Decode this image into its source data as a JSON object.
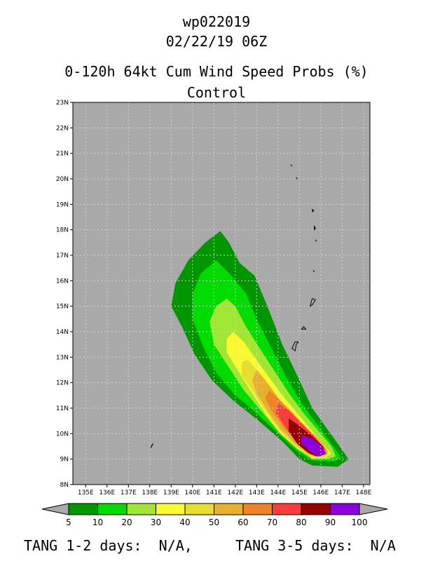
{
  "header": {
    "storm_id": "wp022019",
    "datetime": "02/22/19 06Z",
    "product": "0-120h 64kt Cum Wind Speed Probs (%)",
    "run": "Control"
  },
  "map": {
    "background_color": "#a9a9a9",
    "lat_labels": [
      "8N",
      "9N",
      "10N",
      "11N",
      "12N",
      "13N",
      "14N",
      "15N",
      "16N",
      "17N",
      "18N",
      "19N",
      "20N",
      "21N",
      "22N",
      "23N"
    ],
    "lon_labels": [
      "135E",
      "136E",
      "137E",
      "138E",
      "139E",
      "140E",
      "141E",
      "142E",
      "143E",
      "144E",
      "145E",
      "146E",
      "147E",
      "148E"
    ],
    "lat_range": [
      8,
      23
    ],
    "lon_range": [
      134.4,
      148.3
    ],
    "probability_regions": [
      {
        "min": 5,
        "color": "#009600",
        "outline": [
          [
            141.3,
            17.95
          ],
          [
            141.7,
            17.5
          ],
          [
            142.2,
            16.7
          ],
          [
            142.9,
            16.2
          ],
          [
            143.5,
            15.0
          ],
          [
            144.2,
            13.5
          ],
          [
            145.0,
            12.1
          ],
          [
            145.6,
            11.0
          ],
          [
            146.2,
            10.3
          ],
          [
            146.8,
            9.6
          ],
          [
            147.3,
            9.0
          ],
          [
            146.8,
            8.7
          ],
          [
            145.6,
            8.75
          ],
          [
            145.0,
            9.0
          ],
          [
            144.2,
            9.7
          ],
          [
            143.1,
            10.5
          ],
          [
            141.9,
            11.3
          ],
          [
            140.9,
            12.1
          ],
          [
            140.1,
            13.1
          ],
          [
            139.5,
            14.2
          ],
          [
            139.0,
            15.0
          ],
          [
            139.2,
            15.9
          ],
          [
            139.8,
            16.8
          ],
          [
            140.6,
            17.5
          ]
        ]
      },
      {
        "min": 10,
        "color": "#00dc00",
        "outline": [
          [
            141.1,
            16.8
          ],
          [
            141.7,
            16.3
          ],
          [
            142.5,
            15.5
          ],
          [
            143.0,
            14.5
          ],
          [
            143.6,
            13.5
          ],
          [
            144.4,
            12.2
          ],
          [
            145.1,
            11.2
          ],
          [
            145.8,
            10.4
          ],
          [
            146.5,
            9.6
          ],
          [
            146.95,
            9.05
          ],
          [
            146.6,
            8.9
          ],
          [
            145.6,
            8.95
          ],
          [
            144.9,
            9.3
          ],
          [
            144.0,
            10.0
          ],
          [
            143.0,
            10.8
          ],
          [
            142.0,
            11.5
          ],
          [
            141.1,
            12.4
          ],
          [
            140.5,
            13.4
          ],
          [
            140.0,
            14.5
          ],
          [
            140.0,
            15.5
          ],
          [
            140.4,
            16.3
          ]
        ]
      },
      {
        "min": 20,
        "color": "#a0e632",
        "outline": [
          [
            141.6,
            15.3
          ],
          [
            142.0,
            15.0
          ],
          [
            142.5,
            14.2
          ],
          [
            143.1,
            13.4
          ],
          [
            143.8,
            12.5
          ],
          [
            144.5,
            11.6
          ],
          [
            145.2,
            10.8
          ],
          [
            145.9,
            10.1
          ],
          [
            146.5,
            9.5
          ],
          [
            146.7,
            9.1
          ],
          [
            146.3,
            9.0
          ],
          [
            145.6,
            9.0
          ],
          [
            144.9,
            9.4
          ],
          [
            144.0,
            10.1
          ],
          [
            143.2,
            10.9
          ],
          [
            142.4,
            11.7
          ],
          [
            141.7,
            12.6
          ],
          [
            141.0,
            13.5
          ],
          [
            140.8,
            14.4
          ],
          [
            141.1,
            15.0
          ]
        ]
      },
      {
        "min": 30,
        "color": "#fafa32",
        "outline": [
          [
            141.9,
            14.0
          ],
          [
            142.4,
            13.6
          ],
          [
            142.9,
            13.0
          ],
          [
            143.5,
            12.3
          ],
          [
            144.2,
            11.5
          ],
          [
            144.9,
            10.8
          ],
          [
            145.6,
            10.1
          ],
          [
            146.2,
            9.5
          ],
          [
            146.5,
            9.2
          ],
          [
            146.2,
            9.05
          ],
          [
            145.6,
            9.05
          ],
          [
            144.9,
            9.4
          ],
          [
            144.1,
            10.0
          ],
          [
            143.4,
            10.8
          ],
          [
            142.7,
            11.7
          ],
          [
            142.1,
            12.5
          ],
          [
            141.6,
            13.2
          ],
          [
            141.6,
            13.7
          ]
        ]
      },
      {
        "min": 40,
        "color": "#e6dc32",
        "outline": [
          [
            142.6,
            12.9
          ],
          [
            143.1,
            12.4
          ],
          [
            143.7,
            11.7
          ],
          [
            144.4,
            11.0
          ],
          [
            145.1,
            10.4
          ],
          [
            145.8,
            9.9
          ],
          [
            146.3,
            9.4
          ],
          [
            146.4,
            9.15
          ],
          [
            146.0,
            9.05
          ],
          [
            145.5,
            9.1
          ],
          [
            144.8,
            9.5
          ],
          [
            144.1,
            10.1
          ],
          [
            143.4,
            10.9
          ],
          [
            142.8,
            11.7
          ],
          [
            142.3,
            12.3
          ],
          [
            142.3,
            12.8
          ]
        ]
      },
      {
        "min": 50,
        "color": "#e6af2d",
        "outline": [
          [
            143.0,
            12.5
          ],
          [
            143.5,
            12.0
          ],
          [
            144.1,
            11.3
          ],
          [
            144.8,
            10.7
          ],
          [
            145.5,
            10.1
          ],
          [
            146.1,
            9.6
          ],
          [
            146.35,
            9.25
          ],
          [
            146.0,
            9.1
          ],
          [
            145.5,
            9.15
          ],
          [
            144.8,
            9.6
          ],
          [
            144.1,
            10.2
          ],
          [
            143.5,
            10.9
          ],
          [
            143.0,
            11.6
          ],
          [
            142.8,
            12.1
          ]
        ]
      },
      {
        "min": 60,
        "color": "#f08228",
        "outline": [
          [
            143.6,
            11.7
          ],
          [
            144.1,
            11.3
          ],
          [
            144.7,
            10.8
          ],
          [
            145.3,
            10.2
          ],
          [
            145.9,
            9.7
          ],
          [
            146.3,
            9.3
          ],
          [
            146.0,
            9.1
          ],
          [
            145.5,
            9.2
          ],
          [
            144.9,
            9.6
          ],
          [
            144.3,
            10.2
          ],
          [
            143.7,
            10.9
          ],
          [
            143.4,
            11.4
          ]
        ]
      },
      {
        "min": 70,
        "color": "#fa3c3c",
        "outline": [
          [
            144.0,
            11.2
          ],
          [
            144.5,
            10.9
          ],
          [
            145.1,
            10.4
          ],
          [
            145.7,
            9.9
          ],
          [
            146.2,
            9.4
          ],
          [
            146.0,
            9.15
          ],
          [
            145.5,
            9.2
          ],
          [
            144.9,
            9.6
          ],
          [
            144.4,
            10.2
          ],
          [
            143.9,
            10.8
          ]
        ]
      },
      {
        "min": 80,
        "color": "#960000",
        "outline": [
          [
            144.5,
            10.6
          ],
          [
            145.0,
            10.3
          ],
          [
            145.6,
            9.9
          ],
          [
            146.1,
            9.5
          ],
          [
            146.2,
            9.2
          ],
          [
            145.8,
            9.1
          ],
          [
            145.4,
            9.25
          ],
          [
            144.9,
            9.6
          ],
          [
            144.5,
            10.1
          ]
        ]
      },
      {
        "min": 90,
        "color": "#8c00dc",
        "outline": [
          [
            145.1,
            9.95
          ],
          [
            145.6,
            9.8
          ],
          [
            146.1,
            9.45
          ],
          [
            146.25,
            9.2
          ],
          [
            145.9,
            9.1
          ],
          [
            145.5,
            9.3
          ],
          [
            145.1,
            9.6
          ]
        ]
      }
    ],
    "islands": [
      [
        [
          144.6,
          20.55
        ],
        [
          144.65,
          20.5
        ]
      ],
      [
        [
          144.85,
          20.05
        ],
        [
          144.9,
          20.0
        ]
      ],
      [
        [
          145.6,
          18.8
        ],
        [
          145.67,
          18.75
        ],
        [
          145.62,
          18.7
        ]
      ],
      [
        [
          145.7,
          18.15
        ],
        [
          145.75,
          18.05
        ],
        [
          145.7,
          18.0
        ]
      ],
      [
        [
          145.75,
          17.6
        ],
        [
          145.8,
          17.55
        ]
      ],
      [
        [
          145.65,
          16.4
        ],
        [
          145.7,
          16.35
        ]
      ],
      [
        [
          145.6,
          15.3
        ],
        [
          145.75,
          15.25
        ],
        [
          145.6,
          15.05
        ],
        [
          145.5,
          15.0
        ]
      ],
      [
        [
          145.2,
          14.2
        ],
        [
          145.3,
          14.1
        ],
        [
          145.1,
          14.1
        ]
      ],
      [
        [
          144.95,
          13.6
        ],
        [
          144.85,
          13.5
        ],
        [
          144.8,
          13.25
        ],
        [
          144.65,
          13.35
        ],
        [
          144.8,
          13.6
        ]
      ],
      [
        [
          138.15,
          9.6
        ],
        [
          138.05,
          9.45
        ],
        [
          138.1,
          9.55
        ]
      ]
    ]
  },
  "colorbar": {
    "colors": [
      "#009600",
      "#00dc00",
      "#a0e632",
      "#fafa32",
      "#e6dc32",
      "#e6af2d",
      "#f08228",
      "#fa3c3c",
      "#960000",
      "#8c00dc"
    ],
    "under_color": "#a9a9a9",
    "over_color": "#a9a9a9",
    "labels": [
      "5",
      "10",
      "20",
      "30",
      "40",
      "50",
      "60",
      "70",
      "80",
      "90",
      "100"
    ]
  },
  "footer": {
    "tang_short": "TANG 1-2 days:  N/A,",
    "tang_long": "TANG 3-5 days:  N/A"
  }
}
